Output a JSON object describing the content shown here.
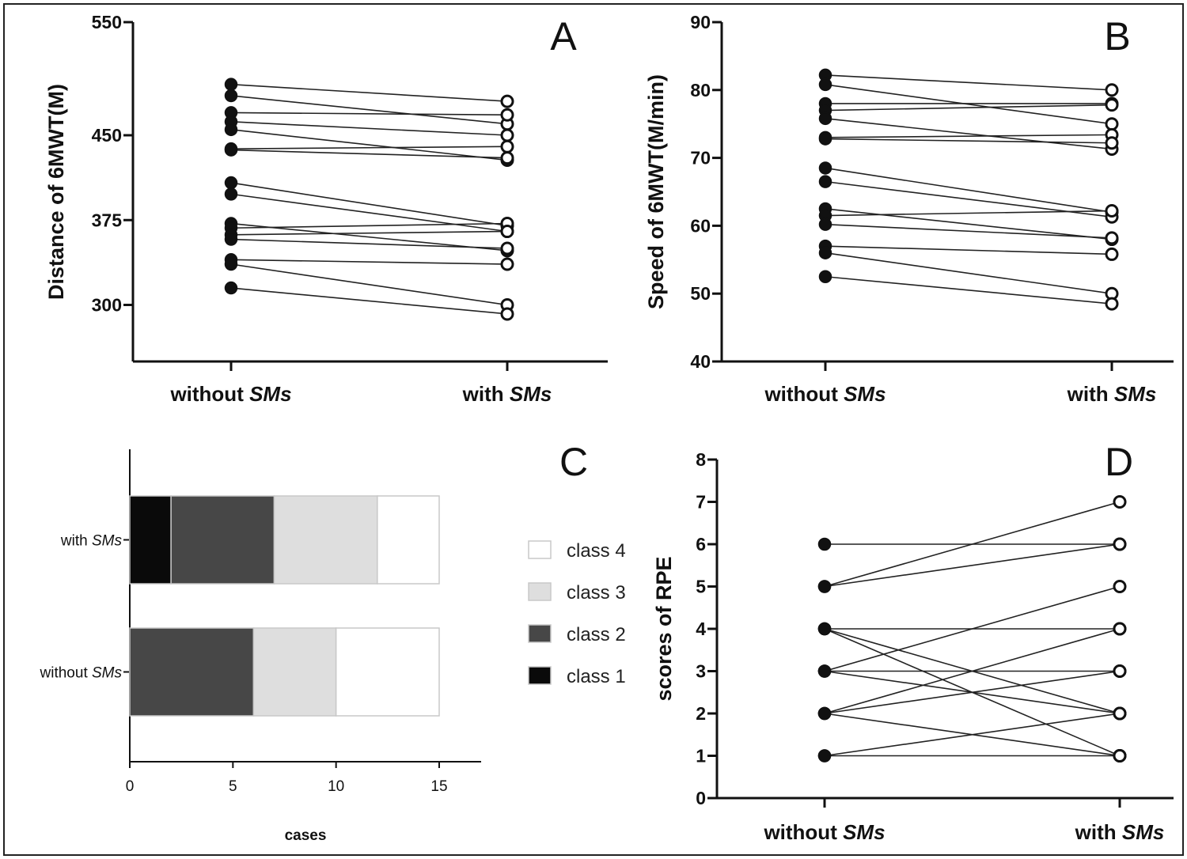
{
  "chart_data": [
    {
      "type": "line",
      "panel": "A",
      "ylabel": "Distance of 6MWT(M)",
      "ylim": [
        250,
        550
      ],
      "yticks": [
        300,
        375,
        450,
        550
      ],
      "categories": [
        {
          "plain": "without ",
          "italic": "SMs"
        },
        {
          "plain": "with ",
          "italic": "SMs"
        }
      ],
      "pairs": [
        [
          495,
          480
        ],
        [
          485,
          460
        ],
        [
          470,
          468
        ],
        [
          462,
          450
        ],
        [
          455,
          428
        ],
        [
          438,
          440
        ],
        [
          437,
          430
        ],
        [
          408,
          370
        ],
        [
          398,
          365
        ],
        [
          372,
          348
        ],
        [
          368,
          372
        ],
        [
          362,
          365
        ],
        [
          358,
          350
        ],
        [
          340,
          336
        ],
        [
          336,
          300
        ],
        [
          315,
          292
        ]
      ]
    },
    {
      "type": "line",
      "panel": "B",
      "ylabel": "Speed of 6MWT(M/min)",
      "ylim": [
        40,
        90
      ],
      "yticks": [
        40,
        50,
        60,
        70,
        80,
        90
      ],
      "categories": [
        {
          "plain": "without ",
          "italic": "SMs"
        },
        {
          "plain": "with ",
          "italic": "SMs"
        }
      ],
      "pairs": [
        [
          82.2,
          80
        ],
        [
          80.8,
          75
        ],
        [
          78,
          78
        ],
        [
          77,
          77.8
        ],
        [
          75.8,
          71.3
        ],
        [
          73,
          73.4
        ],
        [
          72.8,
          72.2
        ],
        [
          68.5,
          62
        ],
        [
          66.5,
          61.3
        ],
        [
          62.5,
          58
        ],
        [
          61.5,
          62.2
        ],
        [
          60.2,
          58.2
        ],
        [
          57,
          55.8
        ],
        [
          56,
          50
        ],
        [
          52.5,
          48.5
        ]
      ]
    },
    {
      "type": "bar",
      "panel": "C",
      "orientation": "horizontal",
      "stacked": true,
      "xlabel": "cases",
      "xlim": [
        0,
        17
      ],
      "xticks": [
        0,
        5,
        10,
        15
      ],
      "categories": [
        {
          "plain": "with ",
          "italic": "SMs"
        },
        {
          "plain": "without ",
          "italic": "SMs"
        }
      ],
      "series": [
        {
          "name": "class 1",
          "color": "#0a0a0a",
          "values": [
            2,
            0
          ]
        },
        {
          "name": "class 2",
          "color": "#474747",
          "values": [
            5,
            6
          ]
        },
        {
          "name": "class 3",
          "color": "#dedede",
          "values": [
            5,
            4
          ]
        },
        {
          "name": "class 4",
          "color": "#ffffff",
          "values": [
            3,
            5
          ]
        }
      ],
      "legend_position": "right"
    },
    {
      "type": "line",
      "panel": "D",
      "ylabel": "scores of RPE",
      "ylim": [
        0,
        8
      ],
      "yticks": [
        0,
        1,
        2,
        3,
        4,
        5,
        6,
        7,
        8
      ],
      "categories": [
        {
          "plain": "without ",
          "italic": "SMs"
        },
        {
          "plain": "with ",
          "italic": "SMs"
        }
      ],
      "pairs": [
        [
          6,
          6
        ],
        [
          5,
          7
        ],
        [
          5,
          6
        ],
        [
          4,
          4
        ],
        [
          4,
          2
        ],
        [
          4,
          1
        ],
        [
          3,
          3
        ],
        [
          3,
          5
        ],
        [
          3,
          2
        ],
        [
          2,
          4
        ],
        [
          2,
          3
        ],
        [
          2,
          1
        ],
        [
          1,
          2
        ],
        [
          1,
          1
        ]
      ]
    }
  ]
}
